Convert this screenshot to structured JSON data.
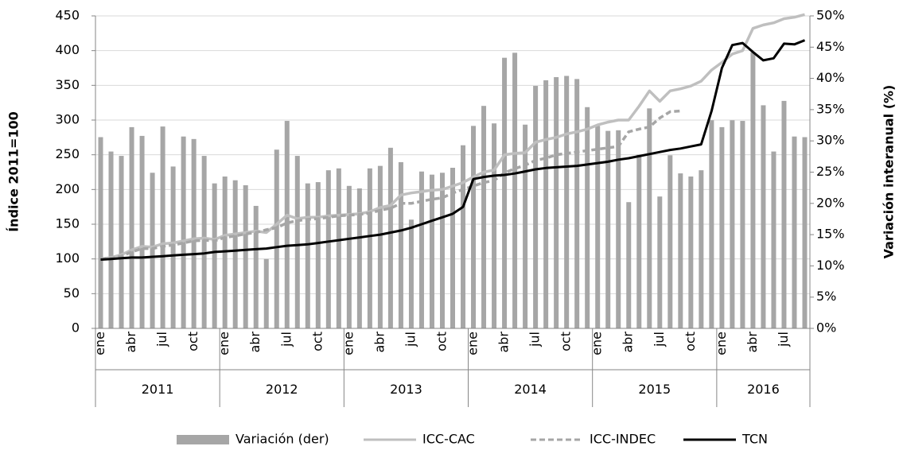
{
  "chart_data": {
    "type": "combo",
    "y_label": "Índice 2011=100",
    "y2_label": "Variación interanual (%)",
    "categories": [
      "ene",
      null,
      null,
      "abr",
      null,
      null,
      "jul",
      null,
      null,
      "oct",
      null,
      null,
      "ene",
      null,
      null,
      "abr",
      null,
      null,
      "jul",
      null,
      null,
      "oct",
      null,
      null,
      "ene",
      null,
      null,
      "abr",
      null,
      null,
      "jul",
      null,
      null,
      "oct",
      null,
      null,
      "ene",
      null,
      null,
      "abr",
      null,
      null,
      "jul",
      null,
      null,
      "oct",
      null,
      null,
      "ene",
      null,
      null,
      "abr",
      null,
      null,
      "jul",
      null,
      null,
      "oct",
      null,
      null,
      "ene",
      null,
      null,
      "abr",
      null,
      null,
      "jul",
      null,
      null
    ],
    "years": [
      "2011",
      "2012",
      "2013",
      "2014",
      "2015",
      "2016"
    ],
    "ylim": [
      0,
      450
    ],
    "yticks": [
      0,
      50,
      100,
      150,
      200,
      250,
      300,
      350,
      400,
      450
    ],
    "y2lim": [
      0,
      50
    ],
    "y2ticks": [
      {
        "value": 0,
        "label": "0%"
      },
      {
        "value": 5,
        "label": "5%"
      },
      {
        "value": 10,
        "label": "10%"
      },
      {
        "value": 15,
        "label": "15%"
      },
      {
        "value": 20,
        "label": "20%"
      },
      {
        "value": 25,
        "label": "25%"
      },
      {
        "value": 30,
        "label": "30%"
      },
      {
        "value": 35,
        "label": "35%"
      },
      {
        "value": 40,
        "label": "40%"
      },
      {
        "value": 45,
        "label": "45%"
      },
      {
        "value": 50,
        "label": "50%"
      }
    ],
    "grid": true,
    "legend": "bottom",
    "series": [
      {
        "name": "Variación (der)",
        "type": "bar",
        "axis": "y2",
        "color": "#a6a6a6",
        "values": [
          30.6,
          28.3,
          27.6,
          32.2,
          30.8,
          24.9,
          32.3,
          25.9,
          30.7,
          30.3,
          27.6,
          23.2,
          24.3,
          23.7,
          22.9,
          19.6,
          11.1,
          28.6,
          33.2,
          27.6,
          23.2,
          23.4,
          25.3,
          25.6,
          22.8,
          22.4,
          25.6,
          26.0,
          28.9,
          26.6,
          17.4,
          25.1,
          24.6,
          24.9,
          25.7,
          29.3,
          32.4,
          35.6,
          32.8,
          43.3,
          44.1,
          32.6,
          38.8,
          39.7,
          40.2,
          40.4,
          39.9,
          35.4,
          32.4,
          31.6,
          31.7,
          20.2,
          27.8,
          35.2,
          21.1,
          27.7,
          24.8,
          24.3,
          25.3,
          33.3,
          32.2,
          33.3,
          33.2,
          44.2,
          35.7,
          28.3,
          36.4,
          30.7,
          30.6
        ]
      },
      {
        "name": "ICC-CAC",
        "type": "line",
        "color": "#bfbfbf",
        "dash": false,
        "values": [
          100,
          102,
          106,
          113,
          118,
          117,
          122,
          123,
          126,
          129,
          130,
          128,
          134,
          136,
          138,
          140,
          138,
          150,
          163,
          158,
          160,
          160,
          162,
          163,
          164,
          165,
          168,
          174,
          177,
          192,
          195,
          197,
          199,
          200,
          205,
          210,
          218,
          225,
          228,
          250,
          252,
          253,
          268,
          272,
          275,
          280,
          283,
          287,
          293,
          297,
          300,
          300,
          320,
          342,
          327,
          342,
          345,
          349,
          356,
          372,
          383,
          395,
          400,
          432,
          437,
          440,
          446,
          448,
          452
        ]
      },
      {
        "name": "ICC-INDEC",
        "type": "line",
        "color": "#a6a6a6",
        "dash": true,
        "values": [
          100,
          101,
          104,
          110,
          115,
          115,
          118,
          120,
          123,
          126,
          127,
          126,
          131,
          133,
          136,
          138,
          142,
          145,
          152,
          155,
          157,
          158,
          160,
          162,
          163,
          164,
          166,
          170,
          173,
          180,
          180,
          183,
          186,
          188,
          195,
          200,
          205,
          210,
          213,
          224,
          230,
          235,
          242,
          245,
          250,
          252,
          254,
          256,
          258,
          260,
          262,
          283,
          287,
          290,
          303,
          312,
          313,
          null,
          null,
          null,
          null,
          null,
          null,
          null,
          null,
          null,
          null,
          null,
          null
        ]
      },
      {
        "name": "TCN",
        "type": "line",
        "color": "#000000",
        "dash": false,
        "values": [
          99,
          100,
          101,
          102,
          102,
          103,
          104,
          105,
          106,
          107,
          108,
          110,
          111,
          112,
          113,
          114,
          115,
          117,
          119,
          120,
          121,
          123,
          125,
          127,
          129,
          131,
          133,
          135,
          138,
          141,
          145,
          150,
          155,
          160,
          165,
          175,
          215,
          218,
          220,
          221,
          223,
          226,
          229,
          231,
          232,
          233,
          234,
          236,
          238,
          240,
          243,
          245,
          248,
          251,
          254,
          257,
          259,
          262,
          265,
          313,
          375,
          408,
          411,
          398,
          386,
          389,
          410,
          409,
          415
        ]
      }
    ]
  }
}
